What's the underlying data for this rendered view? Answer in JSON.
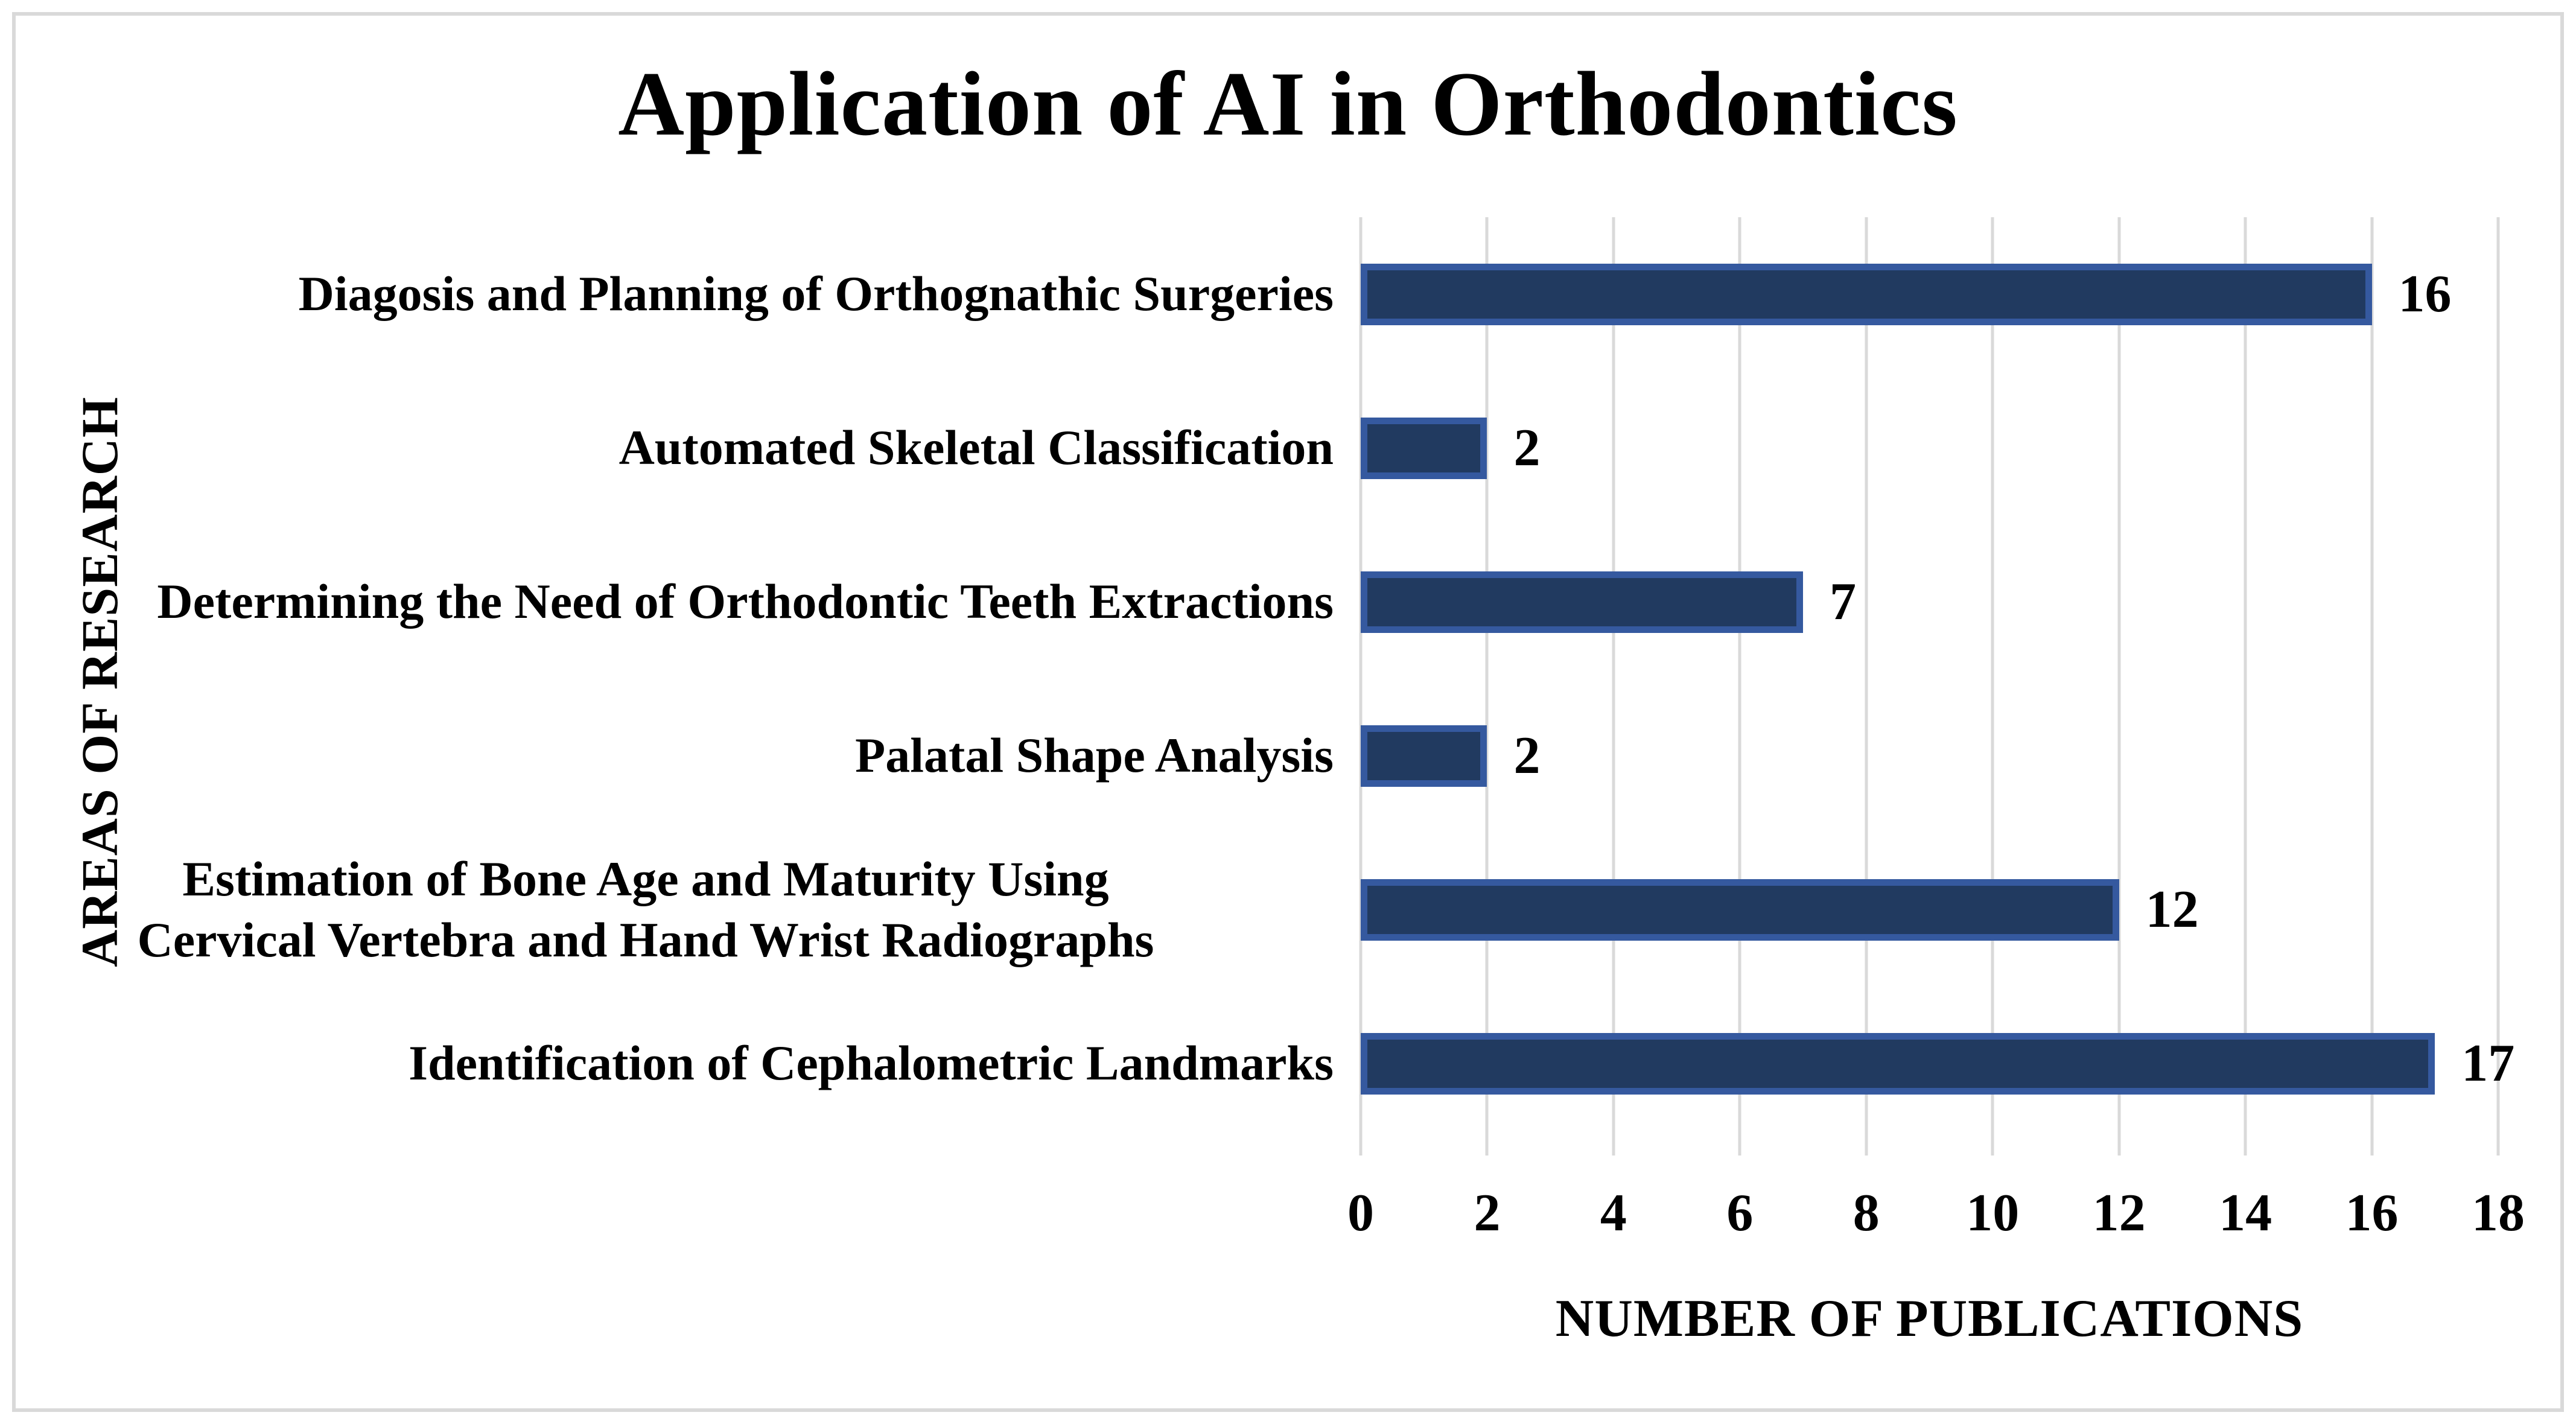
{
  "chart_data": {
    "type": "bar",
    "orientation": "horizontal",
    "title": "Application of AI in Orthodontics",
    "xlabel": "NUMBER OF PUBLICATIONS",
    "ylabel": "AREAS OF RESEARCH",
    "categories": [
      "Diagosis and Planning of Orthognathic Surgeries",
      "Automated Skeletal Classification",
      "Determining the Need of Orthodontic Teeth Extractions",
      "Palatal Shape Analysis",
      "Estimation of Bone Age and Maturity Using Cervical Vertebra and Hand Wrist Radiographs",
      "Identification of Cephalometric Landmarks"
    ],
    "values": [
      16,
      2,
      7,
      2,
      12,
      17
    ],
    "data_labels_shown": true,
    "xlim": [
      0,
      18
    ],
    "xticks": [
      0,
      2,
      4,
      6,
      8,
      10,
      12,
      14,
      16,
      18
    ],
    "grid": "vertical",
    "legend": "none",
    "colors": {
      "bar_fill": "#213a60",
      "bar_border": "#35599f",
      "gridline": "#d9d9d9",
      "frame_border": "#d9d9d9",
      "text": "#000000",
      "background": "#ffffff"
    }
  }
}
